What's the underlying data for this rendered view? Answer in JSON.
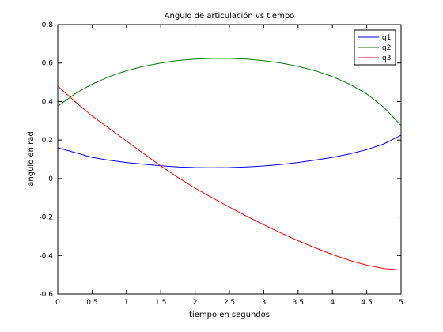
{
  "chart_data": {
    "type": "line",
    "title": "Angulo de articulación vs tiempo",
    "xlabel": "tiempo en segundos",
    "ylabel": "angulo en rad",
    "xlim": [
      0,
      5
    ],
    "ylim": [
      -0.6,
      0.8
    ],
    "xticks": [
      0,
      0.5,
      1,
      1.5,
      2,
      2.5,
      3,
      3.5,
      4,
      4.5,
      5
    ],
    "xtick_labels": [
      "0",
      "0.5",
      "1",
      "1.5",
      "2",
      "2.5",
      "3",
      "3.5",
      "4",
      "4.5",
      "5"
    ],
    "yticks": [
      -0.6,
      -0.4,
      -0.2,
      0,
      0.2,
      0.4,
      0.6,
      0.8
    ],
    "ytick_labels": [
      "-0.6",
      "-0.4",
      "-0.2",
      "0",
      "0.2",
      "0.4",
      "0.6",
      "0.8"
    ],
    "grid": false,
    "legend_position": "top-right",
    "x": [
      0,
      0.25,
      0.5,
      0.75,
      1,
      1.25,
      1.5,
      1.75,
      2,
      2.25,
      2.5,
      2.75,
      3,
      3.25,
      3.5,
      3.75,
      4,
      4.25,
      4.5,
      4.75,
      5
    ],
    "series": [
      {
        "name": "q1",
        "color": "#0000ff",
        "values": [
          0.16,
          0.135,
          0.11,
          0.095,
          0.083,
          0.074,
          0.066,
          0.06,
          0.057,
          0.056,
          0.057,
          0.06,
          0.065,
          0.073,
          0.083,
          0.096,
          0.11,
          0.128,
          0.15,
          0.18,
          0.225
        ]
      },
      {
        "name": "q2",
        "color": "#008000",
        "values": [
          0.375,
          0.44,
          0.49,
          0.53,
          0.56,
          0.583,
          0.6,
          0.613,
          0.62,
          0.624,
          0.624,
          0.62,
          0.612,
          0.6,
          0.583,
          0.56,
          0.53,
          0.49,
          0.44,
          0.37,
          0.275
        ]
      },
      {
        "name": "q3",
        "color": "#ff0000",
        "values": [
          0.48,
          0.4,
          0.325,
          0.26,
          0.195,
          0.13,
          0.065,
          0.005,
          -0.05,
          -0.1,
          -0.148,
          -0.195,
          -0.24,
          -0.283,
          -0.323,
          -0.36,
          -0.395,
          -0.425,
          -0.45,
          -0.468,
          -0.475
        ]
      }
    ]
  }
}
